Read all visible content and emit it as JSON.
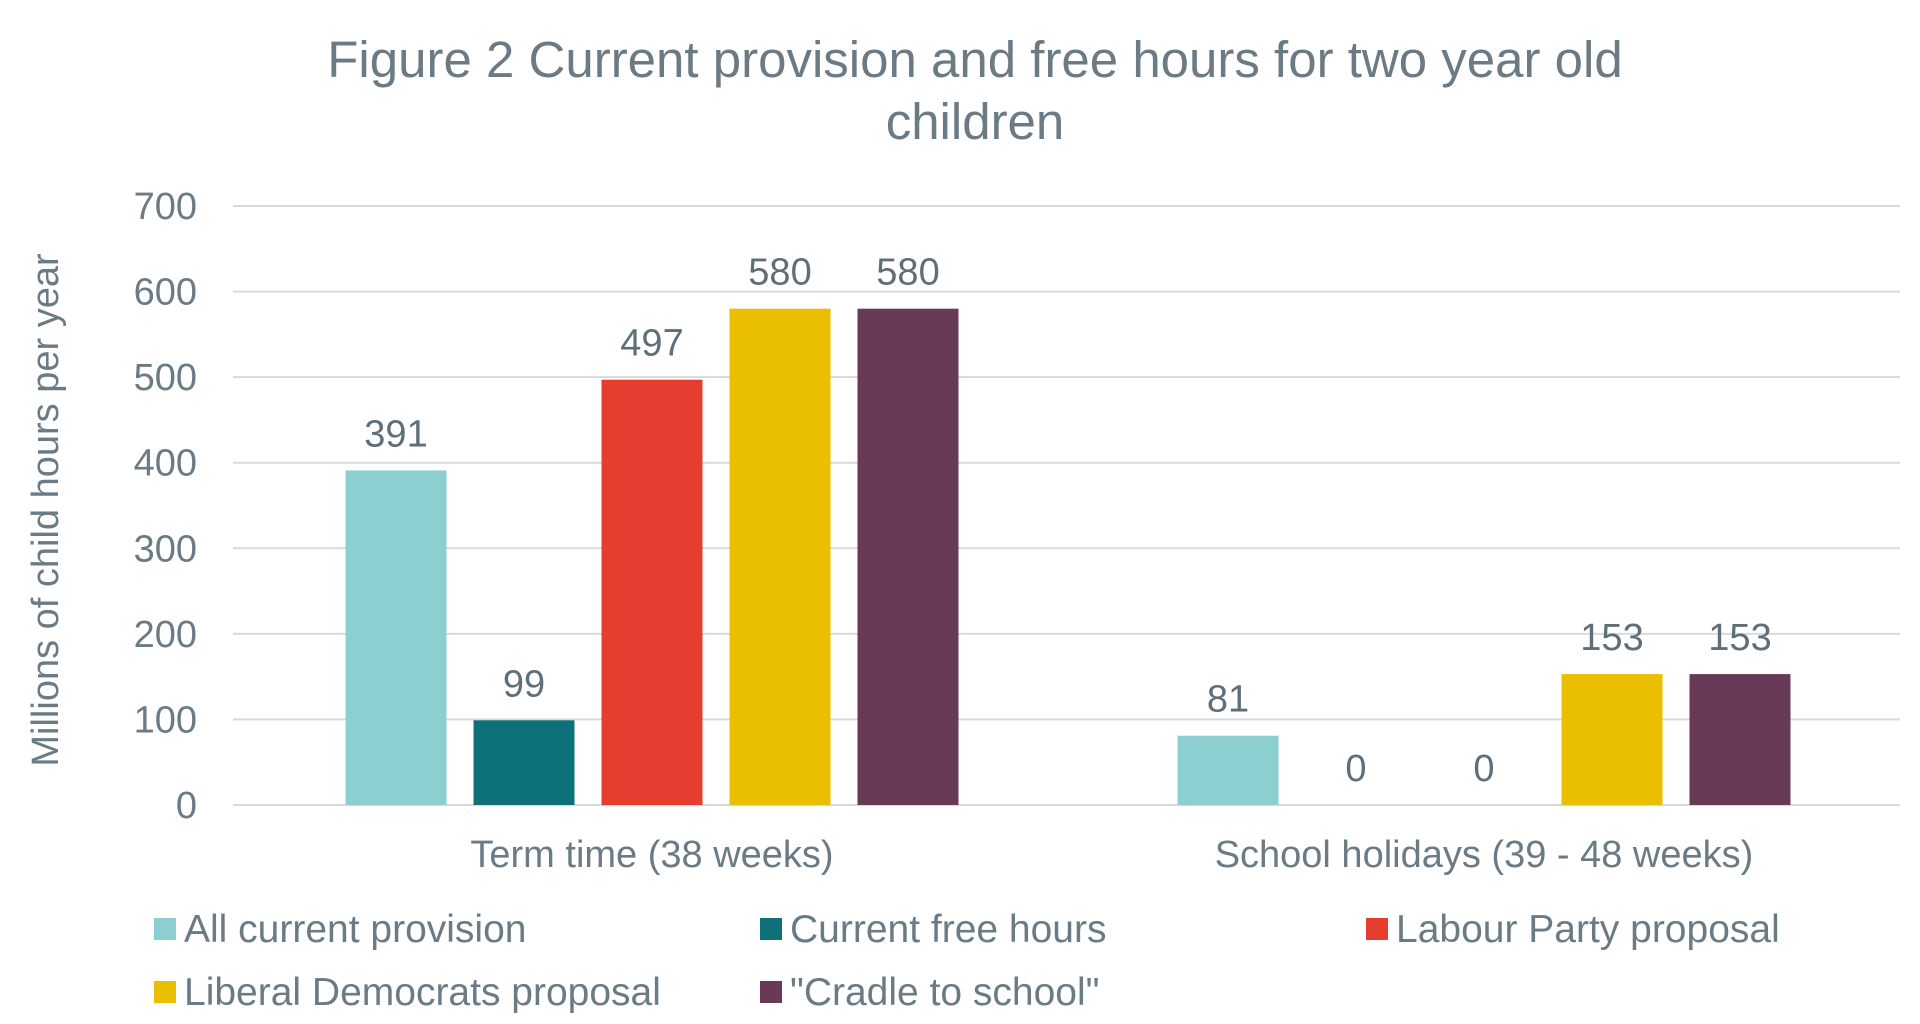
{
  "chart_data": {
    "type": "bar",
    "title": "Figure 2 Current provision and free hours for two year old children",
    "title_lines": [
      "Figure 2 Current provision and free hours for two year old",
      "children"
    ],
    "xlabel": "",
    "ylabel": "Millions of child hours per year",
    "ylim": [
      0,
      700
    ],
    "yticks": [
      0,
      100,
      200,
      300,
      400,
      500,
      600,
      700
    ],
    "grid": true,
    "legend_position": "bottom",
    "categories": [
      "Term time (38 weeks)",
      "School holidays (39 - 48 weeks)"
    ],
    "series": [
      {
        "name": "All current provision",
        "color": "#8ccfd1",
        "values": [
          391,
          81
        ]
      },
      {
        "name": "Current free hours",
        "color": "#0e7179",
        "values": [
          99,
          0
        ]
      },
      {
        "name": "Labour Party proposal",
        "color": "#e53e31",
        "values": [
          497,
          0
        ]
      },
      {
        "name": "Liberal Democrats proposal",
        "color": "#e9bf00",
        "values": [
          580,
          153
        ]
      },
      {
        "name": "\"Cradle to school\"",
        "color": "#683a58",
        "values": [
          580,
          153
        ]
      }
    ]
  }
}
